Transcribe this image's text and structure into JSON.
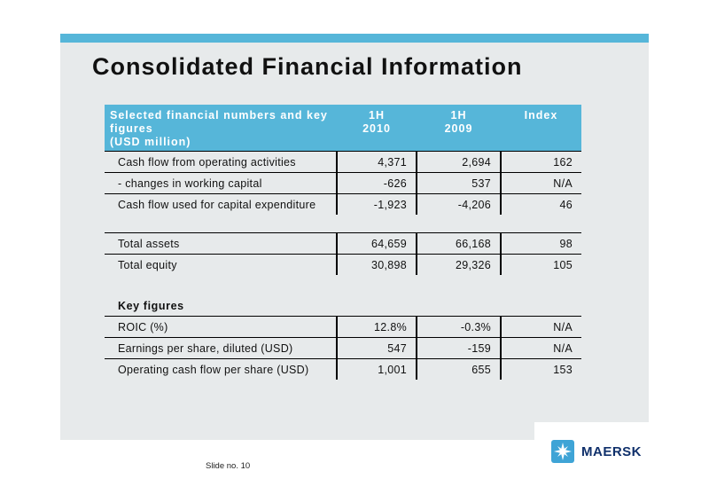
{
  "title": "Consolidated Financial Information",
  "table": {
    "header": {
      "label_line1": "Selected financial numbers and key",
      "label_line2": "figures",
      "label_line3": "(USD million)",
      "col1_line1": "1H",
      "col1_line2": "2010",
      "col2_line1": "1H",
      "col2_line2": "2009",
      "col3": "Index"
    },
    "rows": [
      {
        "label": "Cash flow from operating activities",
        "v2010": "4,371",
        "v2009": "2,694",
        "index": "162"
      },
      {
        "label": "- changes in working capital",
        "v2010": "-626",
        "v2009": "537",
        "index": "N/A"
      },
      {
        "label": "Cash flow used for capital expenditure",
        "v2010": "-1,923",
        "v2009": "-4,206",
        "index": "46"
      },
      {
        "label": "Total assets",
        "v2010": "64,659",
        "v2009": "66,168",
        "index": "98"
      },
      {
        "label": "Total equity",
        "v2010": "30,898",
        "v2009": "29,326",
        "index": "105"
      },
      {
        "label": "ROIC (%)",
        "v2010": "12.8%",
        "v2009": "-0.3%",
        "index": "N/A"
      },
      {
        "label": "Earnings per share, diluted (USD)",
        "v2010": "547",
        "v2009": "-159",
        "index": "N/A"
      },
      {
        "label": "Operating cash flow per share (USD)",
        "v2010": "1,001",
        "v2009": "655",
        "index": "153"
      }
    ],
    "key_figures_heading": "Key figures"
  },
  "footer": {
    "slide_no": "Slide no. 10",
    "logo_text": "MAERSK",
    "logo_icon": "maersk-star-icon"
  },
  "colors": {
    "accent": "#56b6d9",
    "panel": "#e7eaeb",
    "logo_text": "#10306b",
    "logo_mark": "#3fa4d6"
  }
}
